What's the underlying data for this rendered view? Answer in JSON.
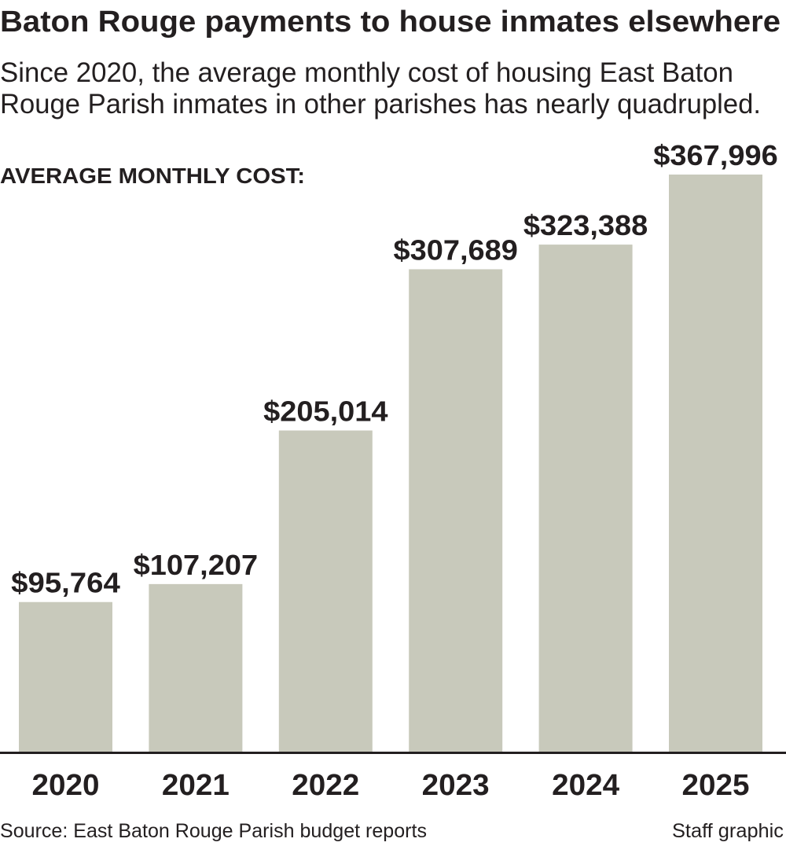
{
  "chart_data": {
    "type": "bar",
    "title": "Baton Rouge payments to house inmates elsewhere",
    "subtitle": [
      "Since 2020, the average monthly cost of housing East Baton",
      "Rouge Parish inmates in other parishes has nearly quadrupled."
    ],
    "ylabel": "AVERAGE MONTHLY COST:",
    "categories": [
      "2020",
      "2021",
      "2022",
      "2023",
      "2024",
      "2025"
    ],
    "values": [
      95764,
      107207,
      205014,
      307689,
      323388,
      367996
    ],
    "data_labels": [
      "$95,764",
      "$107,207",
      "$205,014",
      "$307,689",
      "$323,388",
      "$367,996"
    ],
    "ylim": [
      0,
      367996
    ],
    "grid": false,
    "bar_color": "#c8c9bb",
    "text_color": "#231f20",
    "source": "Source: East Baton Rouge Parish budget reports",
    "credit": "Staff graphic"
  }
}
